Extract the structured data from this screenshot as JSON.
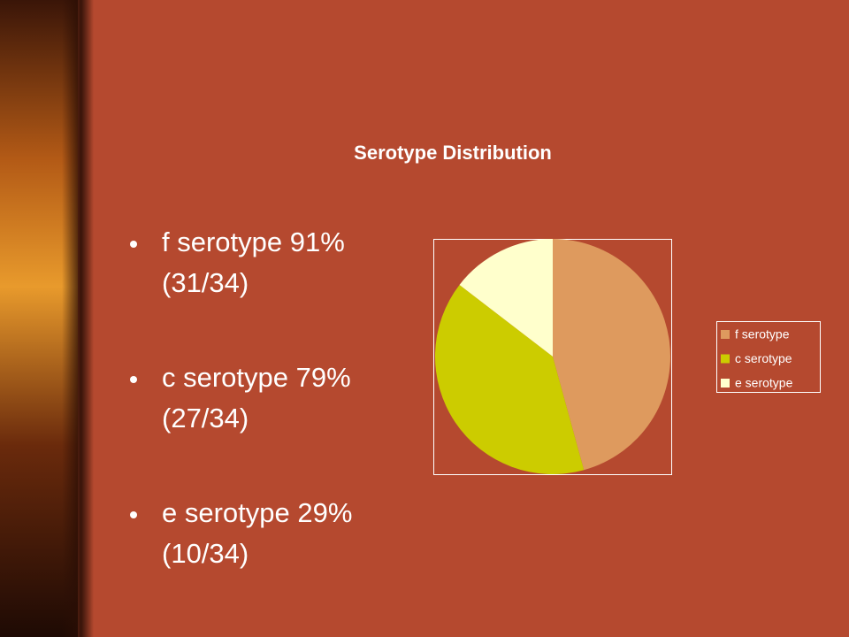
{
  "chart_data": {
    "type": "pie",
    "title": "Serotype Distribution",
    "categories": [
      "f serotype",
      "c serotype",
      "e serotype"
    ],
    "values": [
      91,
      79,
      29
    ],
    "colors": [
      "#de9a5e",
      "#cccc00",
      "#ffffcc"
    ],
    "legend": "right"
  },
  "bullets": [
    {
      "line1": "f serotype 91%",
      "line2": "(31/34)"
    },
    {
      "line1": "c serotype 79%",
      "line2": "(27/34)"
    },
    {
      "line1": "e serotype 29%",
      "line2": "(10/34)"
    }
  ]
}
